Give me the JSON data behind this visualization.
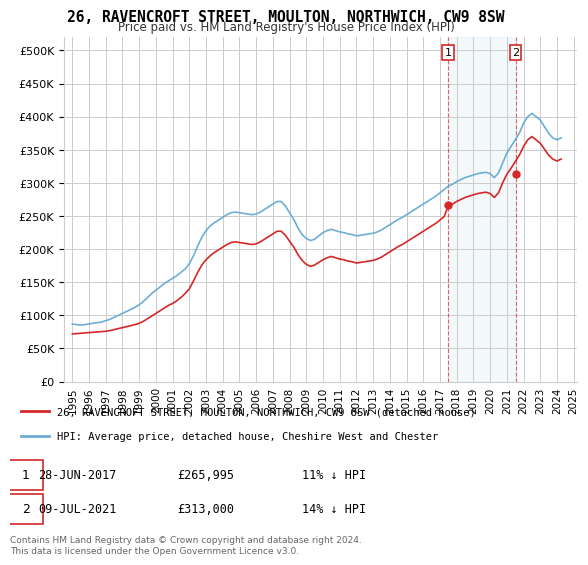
{
  "title": "26, RAVENCROFT STREET, MOULTON, NORTHWICH, CW9 8SW",
  "subtitle": "Price paid vs. HM Land Registry's House Price Index (HPI)",
  "legend_entry1": "26, RAVENCROFT STREET, MOULTON, NORTHWICH, CW9 8SW (detached house)",
  "legend_entry2": "HPI: Average price, detached house, Cheshire West and Chester",
  "annotation1_label": "1",
  "annotation1_date": "28-JUN-2017",
  "annotation1_price": "£265,995",
  "annotation1_hpi": "11% ↓ HPI",
  "annotation2_label": "2",
  "annotation2_date": "09-JUL-2021",
  "annotation2_price": "£313,000",
  "annotation2_hpi": "14% ↓ HPI",
  "footer": "Contains HM Land Registry data © Crown copyright and database right 2024.\nThis data is licensed under the Open Government Licence v3.0.",
  "hpi_color": "#6baed6",
  "price_color": "#d62728",
  "vline_color": "#d62728",
  "background_color": "#ffffff",
  "grid_color": "#cccccc",
  "ylim": [
    0,
    520000
  ],
  "yticks": [
    0,
    50000,
    100000,
    150000,
    200000,
    250000,
    300000,
    350000,
    400000,
    450000,
    500000
  ],
  "sale1_year": 2017.49,
  "sale1_price": 265995,
  "sale2_year": 2021.52,
  "sale2_price": 313000,
  "hpi_data": {
    "years": [
      1995.0,
      1995.25,
      1995.5,
      1995.75,
      1996.0,
      1996.25,
      1996.5,
      1996.75,
      1997.0,
      1997.25,
      1997.5,
      1997.75,
      1998.0,
      1998.25,
      1998.5,
      1998.75,
      1999.0,
      1999.25,
      1999.5,
      1999.75,
      2000.0,
      2000.25,
      2000.5,
      2000.75,
      2001.0,
      2001.25,
      2001.5,
      2001.75,
      2002.0,
      2002.25,
      2002.5,
      2002.75,
      2003.0,
      2003.25,
      2003.5,
      2003.75,
      2004.0,
      2004.25,
      2004.5,
      2004.75,
      2005.0,
      2005.25,
      2005.5,
      2005.75,
      2006.0,
      2006.25,
      2006.5,
      2006.75,
      2007.0,
      2007.25,
      2007.5,
      2007.75,
      2008.0,
      2008.25,
      2008.5,
      2008.75,
      2009.0,
      2009.25,
      2009.5,
      2009.75,
      2010.0,
      2010.25,
      2010.5,
      2010.75,
      2011.0,
      2011.25,
      2011.5,
      2011.75,
      2012.0,
      2012.25,
      2012.5,
      2012.75,
      2013.0,
      2013.25,
      2013.5,
      2013.75,
      2014.0,
      2014.25,
      2014.5,
      2014.75,
      2015.0,
      2015.25,
      2015.5,
      2015.75,
      2016.0,
      2016.25,
      2016.5,
      2016.75,
      2017.0,
      2017.25,
      2017.5,
      2017.75,
      2018.0,
      2018.25,
      2018.5,
      2018.75,
      2019.0,
      2019.25,
      2019.5,
      2019.75,
      2020.0,
      2020.25,
      2020.5,
      2020.75,
      2021.0,
      2021.25,
      2021.5,
      2021.75,
      2022.0,
      2022.25,
      2022.5,
      2022.75,
      2023.0,
      2023.25,
      2023.5,
      2023.75,
      2024.0,
      2024.25
    ],
    "values": [
      87000,
      86000,
      85500,
      86000,
      87000,
      88000,
      89000,
      90000,
      92000,
      94000,
      97000,
      100000,
      103000,
      106000,
      109000,
      112000,
      116000,
      121000,
      127000,
      133000,
      138000,
      143000,
      148000,
      152000,
      156000,
      160000,
      165000,
      170000,
      178000,
      190000,
      205000,
      218000,
      228000,
      235000,
      240000,
      244000,
      248000,
      252000,
      255000,
      256000,
      255000,
      254000,
      253000,
      252000,
      253000,
      256000,
      260000,
      264000,
      268000,
      272000,
      272000,
      265000,
      255000,
      245000,
      232000,
      222000,
      216000,
      213000,
      215000,
      220000,
      225000,
      228000,
      230000,
      228000,
      226000,
      225000,
      223000,
      222000,
      220000,
      221000,
      222000,
      223000,
      224000,
      226000,
      229000,
      233000,
      237000,
      241000,
      245000,
      248000,
      252000,
      256000,
      260000,
      264000,
      268000,
      272000,
      276000,
      280000,
      285000,
      290000,
      295000,
      298000,
      302000,
      305000,
      308000,
      310000,
      312000,
      314000,
      315000,
      316000,
      314000,
      308000,
      315000,
      330000,
      345000,
      355000,
      365000,
      375000,
      390000,
      400000,
      405000,
      400000,
      395000,
      385000,
      375000,
      368000,
      365000,
      368000
    ]
  },
  "price_paid_data": {
    "years": [
      1995.0,
      1995.25,
      1995.5,
      1995.75,
      1996.0,
      1996.25,
      1996.5,
      1996.75,
      1997.0,
      1997.25,
      1997.5,
      1997.75,
      1998.0,
      1998.25,
      1998.5,
      1998.75,
      1999.0,
      1999.25,
      1999.5,
      1999.75,
      2000.0,
      2000.25,
      2000.5,
      2000.75,
      2001.0,
      2001.25,
      2001.5,
      2001.75,
      2002.0,
      2002.25,
      2002.5,
      2002.75,
      2003.0,
      2003.25,
      2003.5,
      2003.75,
      2004.0,
      2004.25,
      2004.5,
      2004.75,
      2005.0,
      2005.25,
      2005.5,
      2005.75,
      2006.0,
      2006.25,
      2006.5,
      2006.75,
      2007.0,
      2007.25,
      2007.5,
      2007.75,
      2008.0,
      2008.25,
      2008.5,
      2008.75,
      2009.0,
      2009.25,
      2009.5,
      2009.75,
      2010.0,
      2010.25,
      2010.5,
      2010.75,
      2011.0,
      2011.25,
      2011.5,
      2011.75,
      2012.0,
      2012.25,
      2012.5,
      2012.75,
      2013.0,
      2013.25,
      2013.5,
      2013.75,
      2014.0,
      2014.25,
      2014.5,
      2014.75,
      2015.0,
      2015.25,
      2015.5,
      2015.75,
      2016.0,
      2016.25,
      2016.5,
      2016.75,
      2017.0,
      2017.25,
      2017.5,
      2017.75,
      2018.0,
      2018.25,
      2018.5,
      2018.75,
      2019.0,
      2019.25,
      2019.5,
      2019.75,
      2020.0,
      2020.25,
      2020.5,
      2020.75,
      2021.0,
      2021.25,
      2021.5,
      2021.75,
      2022.0,
      2022.25,
      2022.5,
      2022.75,
      2023.0,
      2023.25,
      2023.5,
      2023.75,
      2024.0,
      2024.25
    ],
    "values": [
      72000,
      72500,
      73000,
      73500,
      74000,
      74500,
      75000,
      75500,
      76000,
      77000,
      78500,
      80000,
      81500,
      83000,
      84500,
      86000,
      88000,
      91000,
      95000,
      99000,
      103000,
      107000,
      111000,
      115000,
      118000,
      122000,
      127000,
      133000,
      140000,
      152000,
      165000,
      176000,
      184000,
      190000,
      195000,
      199000,
      203000,
      207000,
      210000,
      211000,
      210000,
      209000,
      208000,
      207000,
      208000,
      211000,
      215000,
      219000,
      223000,
      227000,
      227000,
      221000,
      212000,
      203000,
      192000,
      183000,
      177000,
      174000,
      176000,
      180000,
      184000,
      187000,
      189000,
      187000,
      185000,
      184000,
      182000,
      181000,
      179000,
      180000,
      181000,
      182000,
      183000,
      185000,
      188000,
      192000,
      196000,
      200000,
      204000,
      207000,
      211000,
      215000,
      219000,
      223000,
      227000,
      231000,
      235000,
      239000,
      244000,
      249000,
      265995,
      268000,
      272000,
      275000,
      278000,
      280000,
      282000,
      284000,
      285000,
      286000,
      284000,
      278000,
      285000,
      300000,
      313000,
      322000,
      332000,
      342000,
      355000,
      365000,
      370000,
      365000,
      360000,
      351000,
      342000,
      336000,
      333000,
      336000
    ]
  }
}
